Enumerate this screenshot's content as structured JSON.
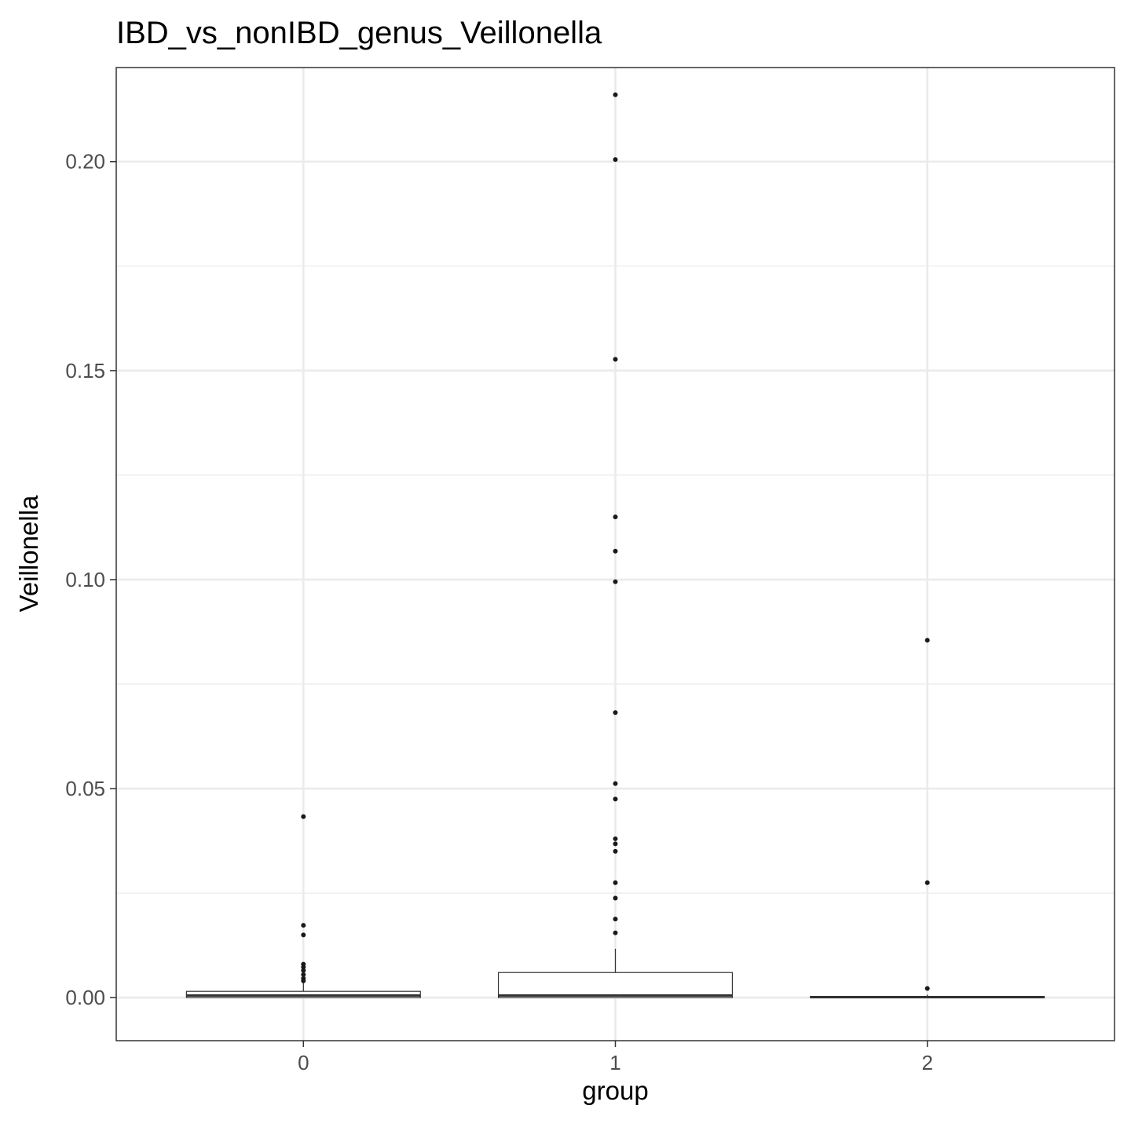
{
  "chart_data": {
    "type": "boxplot",
    "title": "IBD_vs_nonIBD_genus_Veillonella",
    "xlabel": "group",
    "ylabel": "Veillonella",
    "categories": [
      "0",
      "1",
      "2"
    ],
    "ylim": [
      -0.0103,
      0.2225
    ],
    "y_ticks": [
      0.0,
      0.05,
      0.1,
      0.15,
      0.2
    ],
    "y_tick_labels": [
      "0.00",
      "0.05",
      "0.10",
      "0.15",
      "0.20"
    ],
    "grid": true,
    "theme": "black-and-white",
    "boxes": [
      {
        "group": "0",
        "q1": 0.0,
        "median": 0.0005,
        "q3": 0.0015,
        "whisker_low": 0.0,
        "whisker_high": 0.0036,
        "outliers": [
          0.0433,
          0.0173,
          0.015,
          0.008,
          0.0073,
          0.0065,
          0.0055,
          0.0046,
          0.004
        ]
      },
      {
        "group": "1",
        "q1": 0.0,
        "median": 0.0005,
        "q3": 0.006,
        "whisker_low": 0.0,
        "whisker_high": 0.0117,
        "outliers": [
          0.216,
          0.2005,
          0.1527,
          0.115,
          0.1068,
          0.0995,
          0.0682,
          0.0512,
          0.0475,
          0.038,
          0.0368,
          0.035,
          0.0275,
          0.0238,
          0.0188,
          0.0155
        ]
      },
      {
        "group": "2",
        "q1": 0.0,
        "median": 0.0001,
        "q3": 0.0003,
        "whisker_low": 0.0,
        "whisker_high": 0.0007,
        "outliers": [
          0.0855,
          0.0275,
          0.0022
        ]
      }
    ]
  }
}
